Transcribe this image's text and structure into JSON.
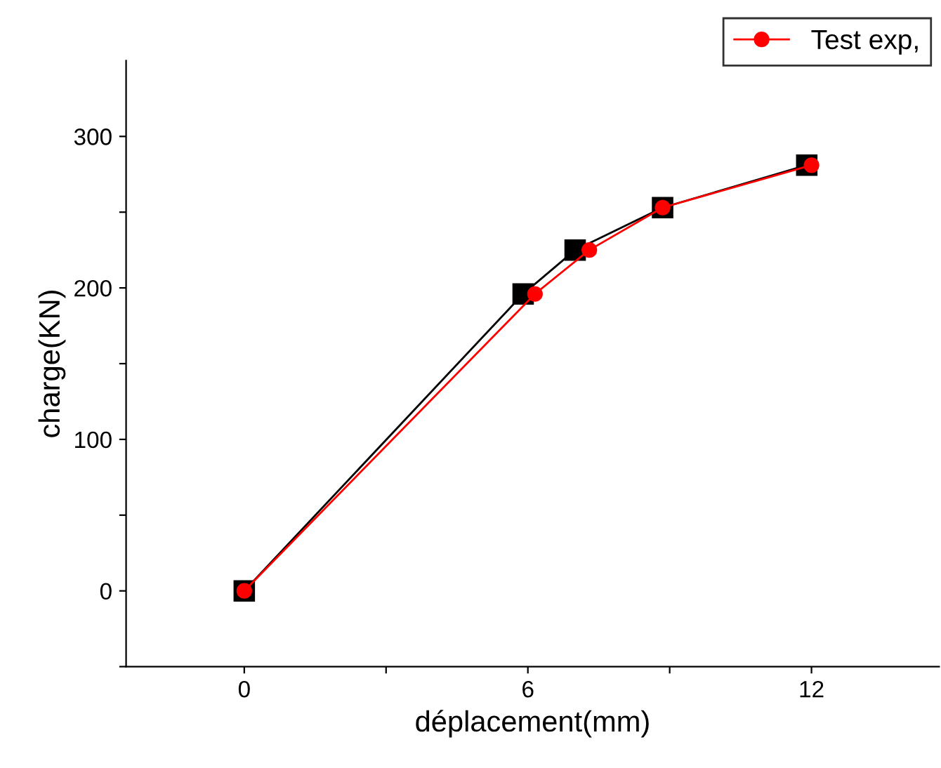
{
  "chart_data": {
    "type": "line",
    "xlabel": "déplacement(mm)",
    "ylabel": "charge(KN)",
    "series": [
      {
        "color": "#000000",
        "marker": "square",
        "x": [
          0,
          5.9,
          7.0,
          8.85,
          11.9
        ],
        "values": [
          0,
          196,
          225,
          253,
          281
        ]
      },
      {
        "name": "Test exp,",
        "color": "#ff0000",
        "marker": "circle",
        "x": [
          0,
          6.15,
          7.3,
          8.85,
          12.0
        ],
        "values": [
          0,
          196,
          225,
          253,
          281
        ]
      }
    ],
    "xlim": [
      -2.5,
      14.7
    ],
    "ylim": [
      -50,
      350
    ],
    "xticks": [
      0,
      {
        "value": 3,
        "label": null
      },
      6,
      {
        "value": 9,
        "label": null
      },
      12
    ],
    "yticks": [
      {
        "value": -50,
        "label": null
      },
      0,
      {
        "value": 50,
        "label": null
      },
      100,
      {
        "value": 150,
        "label": null
      },
      200,
      {
        "value": 250,
        "label": null
      },
      300
    ],
    "grid": false,
    "legend": "top right",
    "line_style": "solid"
  }
}
